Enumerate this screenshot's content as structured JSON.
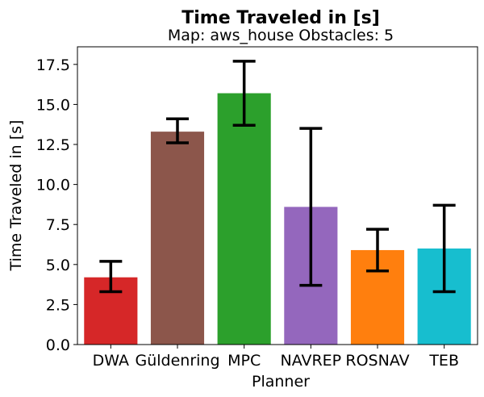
{
  "chart_data": {
    "type": "bar",
    "title": "Time Traveled in [s]",
    "subtitle": "Map: aws_house Obstacles: 5",
    "xlabel": "Planner",
    "ylabel": "Time Traveled in [s]",
    "ylim": [
      0,
      18.6
    ],
    "yticks": [
      "0.0",
      "2.5",
      "5.0",
      "7.5",
      "10.0",
      "12.5",
      "15.0",
      "17.5"
    ],
    "ytick_values": [
      0,
      2.5,
      5,
      7.5,
      10,
      12.5,
      15,
      17.5
    ],
    "categories": [
      "DWA",
      "Güldenring",
      "MPC",
      "NAVREP",
      "ROSNAV",
      "TEB"
    ],
    "values": [
      4.2,
      13.3,
      15.7,
      8.6,
      5.9,
      6.0
    ],
    "error_low": [
      3.3,
      12.6,
      13.7,
      3.7,
      4.6,
      3.3
    ],
    "error_high": [
      5.2,
      14.1,
      17.7,
      13.5,
      7.2,
      8.7
    ],
    "colors": [
      "#d62728",
      "#8c564b",
      "#2ca02c",
      "#9467bd",
      "#ff7f0e",
      "#17becf"
    ],
    "error_color": "#000000",
    "grid": false
  }
}
